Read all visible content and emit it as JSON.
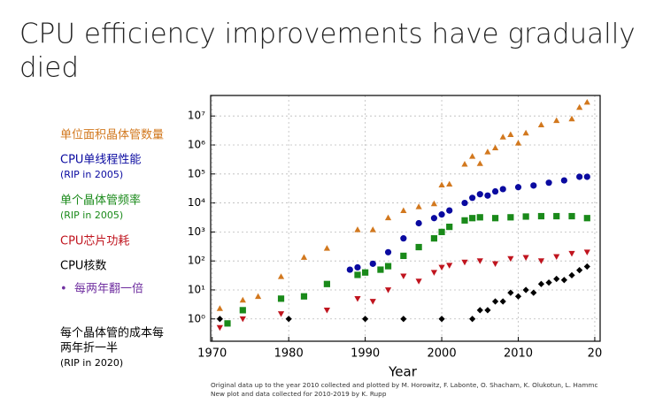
{
  "title_lines": [
    "CPU efficiency improvements have gradually",
    "died"
  ],
  "chart_data": {
    "type": "scatter",
    "log_y": true,
    "grid": true,
    "xlabel": "Year",
    "footnote": [
      "Original data up to the year 2010 collected and plotted by M. Horowitz, F. Labonte, O. Shacham, K. Olukotun, L. Hammc",
      "New plot and data collected for 2010-2019 by K. Rupp"
    ],
    "xlim": [
      1969.8,
      2020.7
    ],
    "ylim": [
      0.17,
      51000000
    ],
    "xticks": [
      1970,
      1980,
      1990,
      2000,
      2010,
      {
        "value": 2020,
        "label": "20"
      }
    ],
    "yticks": [
      {
        "value": 1,
        "label": "10⁰"
      },
      {
        "value": 10,
        "label": "10¹"
      },
      {
        "value": 100,
        "label": "10²"
      },
      {
        "value": 1000,
        "label": "10³"
      },
      {
        "value": 10000,
        "label": "10⁴"
      },
      {
        "value": 100000,
        "label": "10⁵"
      },
      {
        "value": 1000000,
        "label": "10⁶"
      },
      {
        "value": 10000000,
        "label": "10⁷"
      }
    ],
    "series": [
      {
        "name": "单位面积晶体管数量",
        "color": "#d2781e",
        "marker": "triangle",
        "x": [
          1971,
          1974,
          1976,
          1979,
          1982,
          1985,
          1989,
          1991,
          1993,
          1995,
          1997,
          1999,
          2000,
          2001,
          2003,
          2004,
          2005,
          2006,
          2007,
          2008,
          2009,
          2010,
          2011,
          2013,
          2015,
          2017,
          2018,
          2019
        ],
        "values": [
          2.3,
          4.5,
          6,
          29,
          134,
          275,
          1200,
          1200,
          3100,
          5500,
          7500,
          9500,
          42000,
          45000,
          220000,
          410000,
          230000,
          580000,
          800000,
          1900000,
          2300000,
          1170000,
          2600000,
          5000000,
          7000000,
          8000000,
          20000000,
          30000000
        ]
      },
      {
        "name": "CPU单线程性能",
        "note": "(RIP in 2005)",
        "color": "#0a0aa0",
        "marker": "circle",
        "x": [
          1988,
          1989,
          1991,
          1993,
          1995,
          1997,
          1999,
          2000,
          2001,
          2003,
          2004,
          2005,
          2006,
          2007,
          2008,
          2010,
          2012,
          2014,
          2016,
          2018,
          2019
        ],
        "values": [
          50,
          60,
          80,
          200,
          600,
          2000,
          3000,
          4000,
          5500,
          10000,
          15000,
          20000,
          18000,
          25000,
          30000,
          35000,
          40000,
          50000,
          60000,
          80000,
          80000
        ]
      },
      {
        "name": "单个晶体管频率",
        "note": "(RIP in 2005)",
        "color": "#1a8a1a",
        "marker": "square",
        "x": [
          1972,
          1974,
          1979,
          1982,
          1985,
          1989,
          1990,
          1992,
          1993,
          1995,
          1997,
          1999,
          2000,
          2001,
          2003,
          2004,
          2005,
          2007,
          2009,
          2011,
          2013,
          2015,
          2017,
          2019
        ],
        "values": [
          0.7,
          2,
          5,
          6,
          16,
          33,
          40,
          50,
          66,
          150,
          300,
          600,
          1000,
          1500,
          2500,
          3000,
          3200,
          3000,
          3200,
          3400,
          3500,
          3500,
          3500,
          3000
        ]
      },
      {
        "name": "CPU芯片功耗",
        "color": "#c0141e",
        "marker": "down-triangle",
        "x": [
          1971,
          1974,
          1979,
          1985,
          1989,
          1991,
          1993,
          1995,
          1997,
          1999,
          2000,
          2001,
          2003,
          2005,
          2007,
          2009,
          2011,
          2013,
          2015,
          2017,
          2019
        ],
        "values": [
          0.5,
          1,
          1.5,
          2,
          5,
          4,
          10,
          30,
          20,
          40,
          60,
          70,
          90,
          100,
          80,
          120,
          130,
          100,
          140,
          180,
          200
        ]
      },
      {
        "name": "CPU核数",
        "color": "#000000",
        "marker": "diamond",
        "x": [
          1971,
          1980,
          1990,
          1995,
          2000,
          2004,
          2005,
          2006,
          2007,
          2008,
          2009,
          2010,
          2011,
          2012,
          2013,
          2014,
          2015,
          2016,
          2017,
          2018,
          2019
        ],
        "values": [
          1,
          1,
          1,
          1,
          1,
          1,
          2,
          2,
          4,
          4,
          8,
          6,
          10,
          8,
          16,
          18,
          24,
          22,
          32,
          48,
          64
        ]
      }
    ]
  },
  "doubling_note": {
    "text": "每两年翻一倍",
    "color": "#7030a0"
  },
  "cost_note": [
    "每个晶体管的成本每",
    "两年折一半",
    "(RIP in 2020)"
  ]
}
